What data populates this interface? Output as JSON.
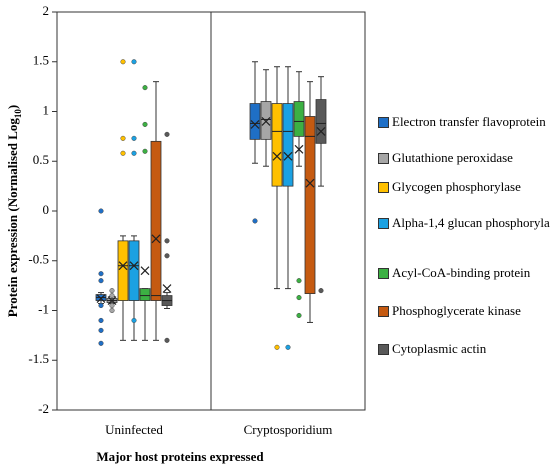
{
  "chart_data": {
    "type": "box",
    "ylabel": {
      "text": "Protein expression (Normalised Log",
      "sub": "10",
      "end": ")"
    },
    "xlabel": "Major host proteins expressed",
    "categories": [
      "Uninfected",
      "Cryptosporidium"
    ],
    "ylim": [
      -2,
      2
    ],
    "yticks": [
      -2,
      -1.5,
      -1,
      -0.5,
      0,
      0.5,
      1,
      1.5,
      2
    ],
    "series": [
      {
        "name": "Electron transfer flavoprotein",
        "color": "#1f6fc6",
        "boxes": [
          {
            "min": -0.93,
            "q1": -0.9,
            "median": -0.87,
            "q3": -0.84,
            "max": -0.82,
            "mean": -0.88,
            "outliers": [
              0,
              -0.63,
              -0.7,
              -0.95,
              -1.1,
              -1.2,
              -1.33
            ]
          },
          {
            "min": 0.48,
            "q1": 0.72,
            "median": 0.88,
            "q3": 1.08,
            "max": 1.5,
            "mean": 0.87,
            "outliers": [
              -0.1
            ]
          }
        ]
      },
      {
        "name": "Glutathione peroxidase",
        "color": "#a6a6a6",
        "boxes": [
          {
            "min": -0.93,
            "q1": -0.92,
            "median": -0.9,
            "q3": -0.88,
            "max": -0.86,
            "mean": -0.9,
            "outliers": [
              -0.8,
              -0.85,
              -0.95,
              -1
            ]
          },
          {
            "min": 0.45,
            "q1": 0.72,
            "median": 0.92,
            "q3": 1.1,
            "max": 1.42,
            "mean": 0.9,
            "outliers": []
          }
        ]
      },
      {
        "name": "Glycogen phosphorylase",
        "color": "#ffc000",
        "boxes": [
          {
            "min": -1.3,
            "q1": -0.9,
            "median": -0.55,
            "q3": -0.3,
            "max": -0.25,
            "mean": -0.55,
            "outliers": [
              1.5,
              0.73,
              0.58
            ]
          },
          {
            "min": -0.78,
            "q1": 0.25,
            "median": 0.8,
            "q3": 1.08,
            "max": 1.45,
            "mean": 0.55,
            "outliers": [
              -1.37
            ]
          }
        ]
      },
      {
        "name": "Alpha-1,4 glucan phosphorylase",
        "color": "#1ba1e2",
        "boxes": [
          {
            "min": -1.3,
            "q1": -0.9,
            "median": -0.55,
            "q3": -0.3,
            "max": -0.25,
            "mean": -0.55,
            "outliers": [
              1.5,
              0.73,
              0.58,
              -1.1
            ]
          },
          {
            "min": -0.78,
            "q1": 0.25,
            "median": 0.8,
            "q3": 1.08,
            "max": 1.45,
            "mean": 0.55,
            "outliers": [
              -1.37
            ]
          }
        ]
      },
      {
        "name": "Acyl-CoA-binding protein",
        "color": "#3cb043",
        "boxes": [
          {
            "min": -1.3,
            "q1": -0.9,
            "median": -0.85,
            "q3": -0.78,
            "max": -0.78,
            "mean": -0.6,
            "outliers": [
              1.24,
              0.87,
              0.6
            ]
          },
          {
            "min": 0.45,
            "q1": 0.75,
            "median": 0.9,
            "q3": 1.1,
            "max": 1.4,
            "mean": 0.62,
            "outliers": [
              -0.7,
              -0.87,
              -1.05
            ]
          }
        ]
      },
      {
        "name": "Phosphoglycerate kinase",
        "color": "#c55a11",
        "boxes": [
          {
            "min": -1.3,
            "q1": -0.9,
            "median": -0.85,
            "q3": 0.7,
            "max": 1.3,
            "mean": -0.28,
            "outliers": []
          },
          {
            "min": -1.12,
            "q1": -0.83,
            "median": 0.75,
            "q3": 0.95,
            "max": 1.3,
            "mean": 0.28,
            "outliers": []
          }
        ]
      },
      {
        "name": "Cytoplasmic actin",
        "color": "#595959",
        "boxes": [
          {
            "min": -0.98,
            "q1": -0.95,
            "median": -0.9,
            "q3": -0.85,
            "max": -0.82,
            "mean": -0.78,
            "outliers": [
              0.77,
              -0.3,
              -0.45,
              -1.3
            ]
          },
          {
            "min": 0.25,
            "q1": 0.68,
            "median": 0.88,
            "q3": 1.12,
            "max": 1.35,
            "mean": 0.8,
            "outliers": [
              -0.8
            ]
          }
        ]
      }
    ]
  }
}
